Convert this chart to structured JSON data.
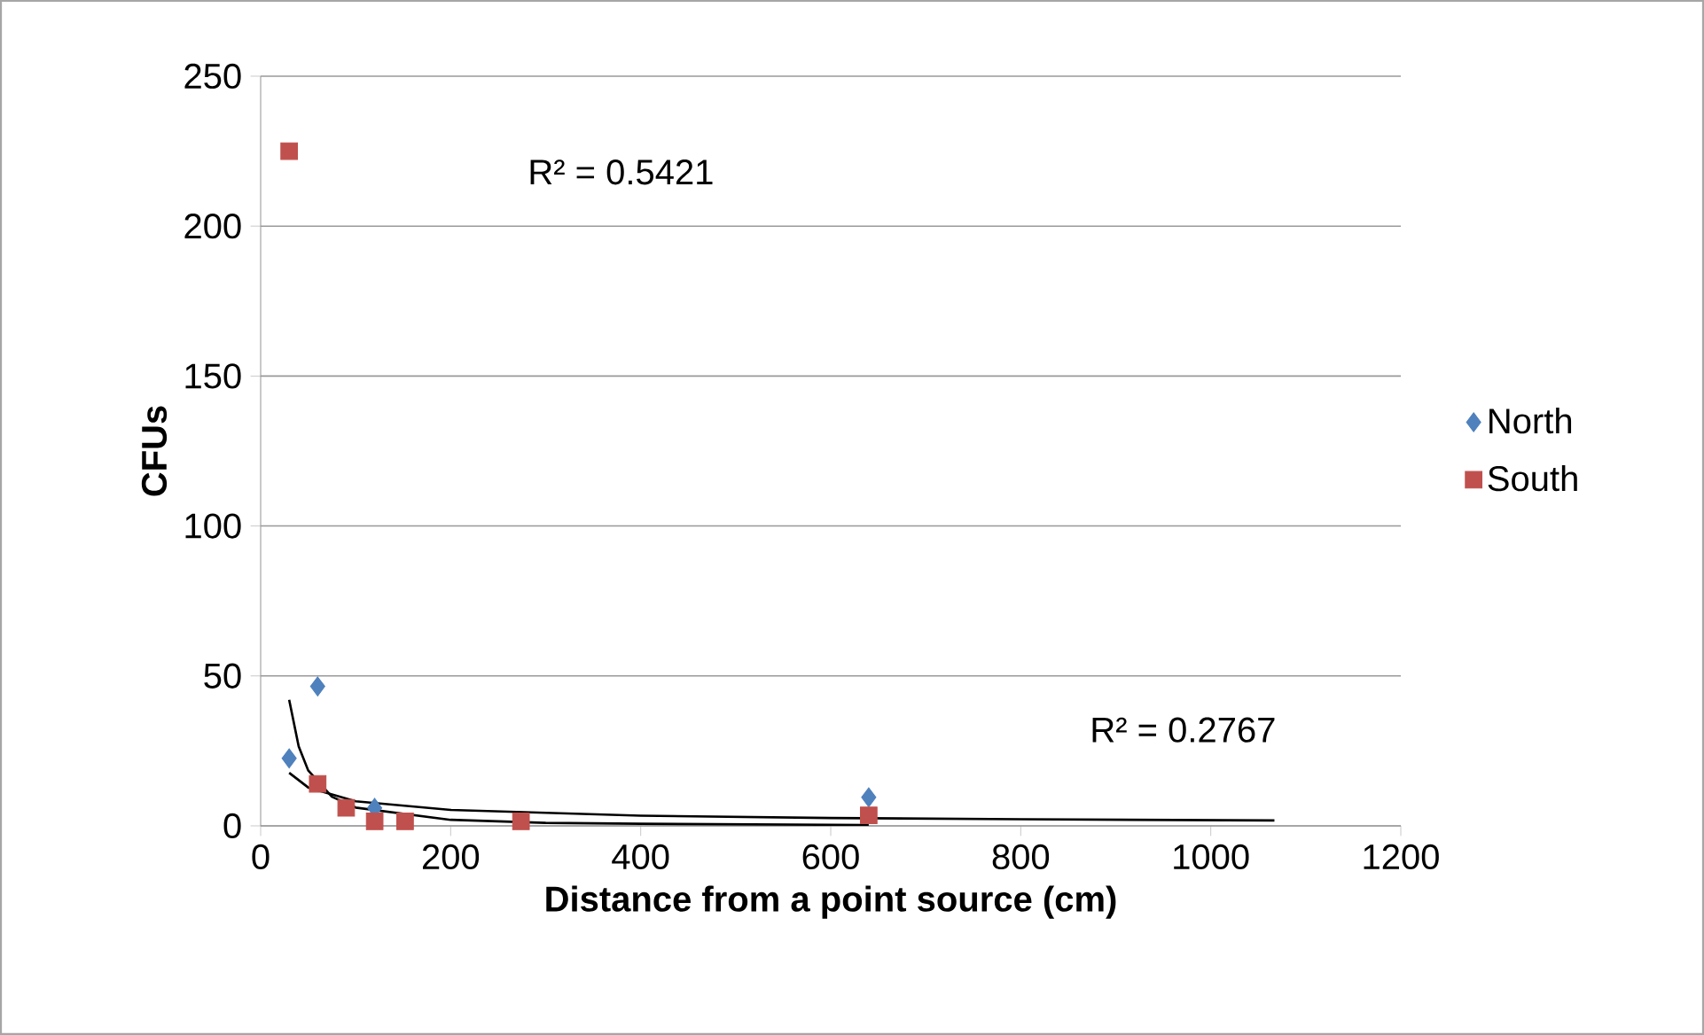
{
  "chart_data": {
    "type": "scatter",
    "xlabel": "Distance from a point source (cm)",
    "ylabel": "CFUs",
    "xlim": [
      0,
      1200
    ],
    "ylim": [
      0,
      250
    ],
    "xticks": [
      0,
      200,
      400,
      600,
      800,
      1000,
      1200
    ],
    "yticks": [
      0,
      50,
      100,
      150,
      200,
      250
    ],
    "grid": "y",
    "legend": "right",
    "series": [
      {
        "name": "North",
        "color": "#4f81bd",
        "marker": "diamond",
        "x": [
          30,
          60,
          90,
          120,
          275,
          640
        ],
        "values": [
          22.5,
          46.5,
          null,
          6,
          null,
          9.5
        ]
      },
      {
        "name": "South",
        "color": "#c0504d",
        "marker": "square",
        "x": [
          30,
          60,
          90,
          120,
          152,
          274,
          640
        ],
        "values": [
          225,
          14,
          6,
          1.5,
          1.5,
          1.5,
          3.5
        ]
      },
      {
        "type": "line",
        "color": "#000000",
        "marker": "none",
        "x": [
          30,
          50,
          100,
          200,
          400,
          600,
          800,
          1067
        ],
        "values": [
          17.7,
          12.8,
          8.2,
          5.3,
          3.4,
          2.6,
          2.2,
          1.8
        ]
      },
      {
        "type": "line",
        "color": "#000000",
        "marker": "none",
        "x": [
          30,
          40,
          50,
          75,
          100,
          200,
          300,
          400,
          640
        ],
        "values": [
          42,
          26.5,
          18.5,
          9.7,
          6.1,
          2,
          1,
          0.7,
          0.3
        ]
      }
    ],
    "annotations": [
      "R² = 0.5421",
      "R² = 0.2767"
    ]
  }
}
